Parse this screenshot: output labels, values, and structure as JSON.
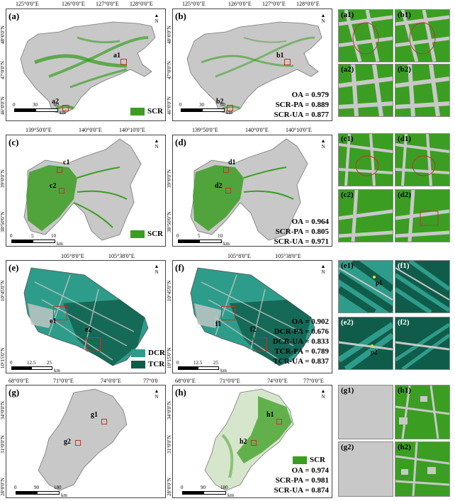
{
  "colors": {
    "green": "#3b9e22",
    "gray": "#c8c8c8",
    "dcr": "#2e9c8a",
    "tcr": "#0f5c4a",
    "red": "#b5382d"
  },
  "row1": {
    "top_coords": [
      "125°0'0\"E",
      "126°0'0\"E",
      "127°0'0\"E",
      "128°0'0\"E"
    ],
    "lat_coords": [
      "48°0'0\"N",
      "47°0'0\"N",
      "46°0'0\"N"
    ],
    "a": {
      "label": "(a)",
      "m1": "a1",
      "m2": "a2",
      "legend": "SCR"
    },
    "b": {
      "label": "(b)",
      "m1": "b1",
      "m2": "b2",
      "oa": "OA = 0.979",
      "pa": "SCR-PA = 0.889",
      "ua": "SCR-UA = 0.877"
    },
    "scale": [
      "0",
      "30",
      "60",
      "km"
    ],
    "tiles": [
      "(a1)",
      "(b1)",
      "(a2)",
      "(b2)"
    ]
  },
  "row2": {
    "top_coords": [
      "139°50'0\"E",
      "140°0'0\"E",
      "140°10'0\"E"
    ],
    "lat_coords": [
      "39°0'0\"N",
      "38°50'0\"N"
    ],
    "c": {
      "label": "(c)",
      "m1": "c1",
      "m2": "c2",
      "legend": "SCR"
    },
    "d": {
      "label": "(d)",
      "m1": "d1",
      "m2": "d2",
      "oa": "OA = 0.964",
      "pa": "SCR-PA = 0.805",
      "ua": "SCR-UA = 0.971"
    },
    "scale": [
      "0",
      "5",
      "10",
      "km"
    ],
    "tiles": [
      "(c1)",
      "(d1)",
      "(c2)",
      "(d2)"
    ]
  },
  "row3": {
    "top_coords": [
      "105°8'0\"E",
      "105°38'0\"E"
    ],
    "lat_coords": [
      "10°45'0\"N",
      "10°15'0\"N"
    ],
    "e": {
      "label": "(e)",
      "m1": "e1",
      "m2": "e2",
      "legend1": "DCR",
      "legend2": "TCR"
    },
    "f": {
      "label": "(f)",
      "m1": "f1",
      "m2": "f2",
      "oa": "OA = 0.902",
      "l1": "DCR-PA = 0.676",
      "l2": "DCR-UA = 0.833",
      "l3": "TCR-PA = 0.789",
      "l4": "TCR-UA = 0.837"
    },
    "scale": [
      "0",
      "12.5",
      "25",
      "km"
    ],
    "tiles": [
      "(e1)",
      "(f1)",
      "(e2)",
      "(f2)"
    ],
    "points": [
      "p1",
      "p2"
    ]
  },
  "row4": {
    "top_coords": [
      "68°0'0\"E",
      "71°0'0\"E",
      "74°0'0\"E",
      "77°0'0"
    ],
    "top_coords_h": [
      "68°0'0\"E",
      "71°0'0\"E",
      "74°0'0\"E",
      "77°0'0\"E"
    ],
    "lat_coords": [
      "34°0'0\"N",
      "31°0'0\"N",
      "28°0'0\"N"
    ],
    "g": {
      "label": "(g)",
      "m1": "g1",
      "m2": "g2"
    },
    "h": {
      "label": "(h)",
      "m1": "h1",
      "m2": "h2",
      "legend": "SCR",
      "oa": "OA = 0.974",
      "pa": "SCR-PA = 0.981",
      "ua": "SCR-UA = 0.874"
    },
    "scale": [
      "0",
      "90",
      "180",
      "km"
    ],
    "tiles": [
      "(g1)",
      "(h1)",
      "(g2)",
      "(h2)"
    ]
  },
  "north_label": "N"
}
